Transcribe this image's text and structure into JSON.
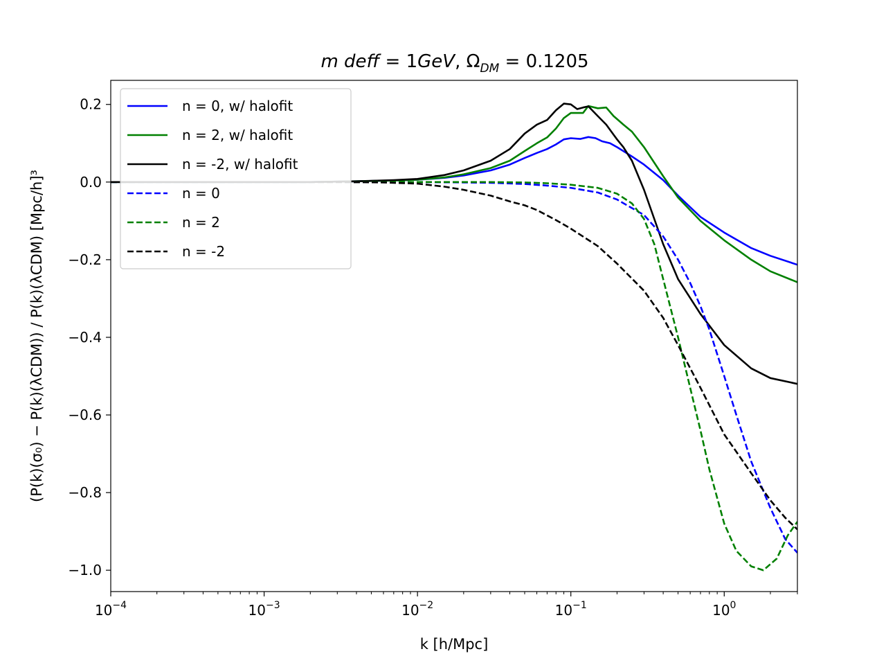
{
  "chart_data": {
    "type": "line",
    "title": "m deff = 1GeV, Ω_DM = 0.1205",
    "title_parts": {
      "m": "m",
      "deff": "deff",
      "eq1": " = 1",
      "gev": "GeV",
      "comma": ", ",
      "omega": "Ω",
      "omega_sub": "DM",
      "eq2": " = 0.1205"
    },
    "xlabel": "k  [h/Mpc]",
    "ylabel": "(P(k)(σ₀) − P(k)(λCDM)) / P(k)(λCDM)  [Mpc/h]³",
    "x_scale": "log",
    "xlim": [
      0.0001,
      3.0
    ],
    "ylim": [
      -1.055,
      0.262
    ],
    "grid": false,
    "legend_position": "top-left",
    "x_ticks": [
      {
        "value": 0.0001,
        "base": "10",
        "exp": "−4"
      },
      {
        "value": 0.001,
        "base": "10",
        "exp": "−3"
      },
      {
        "value": 0.01,
        "base": "10",
        "exp": "−2"
      },
      {
        "value": 0.1,
        "base": "10",
        "exp": "−1"
      },
      {
        "value": 1.0,
        "base": "10",
        "exp": "0"
      }
    ],
    "y_ticks": [
      {
        "value": 0.2,
        "label": "0.2"
      },
      {
        "value": 0.0,
        "label": "0.0"
      },
      {
        "value": -0.2,
        "label": "−0.2"
      },
      {
        "value": -0.4,
        "label": "−0.4"
      },
      {
        "value": -0.6,
        "label": "−0.6"
      },
      {
        "value": -0.8,
        "label": "−0.8"
      },
      {
        "value": -1.0,
        "label": "−1.0"
      }
    ],
    "series": [
      {
        "name": "n = 0, w/ halofit",
        "color": "#0000ff",
        "style": "solid",
        "points": [
          [
            0.0001,
            0
          ],
          [
            0.001,
            0
          ],
          [
            0.002,
            0
          ],
          [
            0.004,
            0.002
          ],
          [
            0.007,
            0.004
          ],
          [
            0.01,
            0.006
          ],
          [
            0.015,
            0.011
          ],
          [
            0.02,
            0.017
          ],
          [
            0.03,
            0.03
          ],
          [
            0.04,
            0.045
          ],
          [
            0.05,
            0.062
          ],
          [
            0.06,
            0.075
          ],
          [
            0.07,
            0.085
          ],
          [
            0.08,
            0.097
          ],
          [
            0.09,
            0.11
          ],
          [
            0.1,
            0.113
          ],
          [
            0.115,
            0.111
          ],
          [
            0.13,
            0.116
          ],
          [
            0.145,
            0.113
          ],
          [
            0.16,
            0.105
          ],
          [
            0.18,
            0.1
          ],
          [
            0.2,
            0.09
          ],
          [
            0.25,
            0.066
          ],
          [
            0.3,
            0.045
          ],
          [
            0.4,
            0.005
          ],
          [
            0.5,
            -0.035
          ],
          [
            0.7,
            -0.09
          ],
          [
            1.0,
            -0.13
          ],
          [
            1.5,
            -0.17
          ],
          [
            2.0,
            -0.19
          ],
          [
            3.0,
            -0.213
          ]
        ]
      },
      {
        "name": "n = 2, w/ halofit",
        "color": "#008000",
        "style": "solid",
        "points": [
          [
            0.0001,
            0
          ],
          [
            0.001,
            0
          ],
          [
            0.002,
            0
          ],
          [
            0.004,
            0.002
          ],
          [
            0.007,
            0.004
          ],
          [
            0.01,
            0.006
          ],
          [
            0.015,
            0.012
          ],
          [
            0.02,
            0.02
          ],
          [
            0.03,
            0.036
          ],
          [
            0.04,
            0.055
          ],
          [
            0.05,
            0.08
          ],
          [
            0.06,
            0.1
          ],
          [
            0.07,
            0.115
          ],
          [
            0.08,
            0.138
          ],
          [
            0.09,
            0.165
          ],
          [
            0.1,
            0.178
          ],
          [
            0.12,
            0.178
          ],
          [
            0.13,
            0.196
          ],
          [
            0.15,
            0.19
          ],
          [
            0.17,
            0.192
          ],
          [
            0.19,
            0.17
          ],
          [
            0.22,
            0.148
          ],
          [
            0.25,
            0.13
          ],
          [
            0.3,
            0.09
          ],
          [
            0.4,
            0.015
          ],
          [
            0.5,
            -0.04
          ],
          [
            0.7,
            -0.1
          ],
          [
            1.0,
            -0.15
          ],
          [
            1.5,
            -0.2
          ],
          [
            2.0,
            -0.23
          ],
          [
            3.0,
            -0.258
          ]
        ]
      },
      {
        "name": "n = -2, w/ halofit",
        "color": "#000000",
        "style": "solid",
        "points": [
          [
            0.0001,
            0
          ],
          [
            0.001,
            0
          ],
          [
            0.002,
            0
          ],
          [
            0.004,
            0.002
          ],
          [
            0.007,
            0.005
          ],
          [
            0.01,
            0.008
          ],
          [
            0.015,
            0.018
          ],
          [
            0.02,
            0.03
          ],
          [
            0.03,
            0.055
          ],
          [
            0.04,
            0.085
          ],
          [
            0.05,
            0.125
          ],
          [
            0.06,
            0.148
          ],
          [
            0.07,
            0.16
          ],
          [
            0.08,
            0.185
          ],
          [
            0.09,
            0.202
          ],
          [
            0.1,
            0.2
          ],
          [
            0.11,
            0.188
          ],
          [
            0.12,
            0.192
          ],
          [
            0.13,
            0.195
          ],
          [
            0.15,
            0.17
          ],
          [
            0.17,
            0.148
          ],
          [
            0.2,
            0.11
          ],
          [
            0.22,
            0.09
          ],
          [
            0.25,
            0.055
          ],
          [
            0.3,
            -0.02
          ],
          [
            0.4,
            -0.16
          ],
          [
            0.5,
            -0.25
          ],
          [
            0.7,
            -0.34
          ],
          [
            1.0,
            -0.42
          ],
          [
            1.5,
            -0.48
          ],
          [
            2.0,
            -0.505
          ],
          [
            3.0,
            -0.52
          ]
        ]
      },
      {
        "name": "n = 0",
        "color": "#0000ff",
        "style": "dashed",
        "points": [
          [
            0.0001,
            0
          ],
          [
            0.001,
            0
          ],
          [
            0.003,
            0
          ],
          [
            0.01,
            0
          ],
          [
            0.02,
            -0.001
          ],
          [
            0.03,
            -0.002
          ],
          [
            0.05,
            -0.005
          ],
          [
            0.07,
            -0.009
          ],
          [
            0.1,
            -0.015
          ],
          [
            0.15,
            -0.027
          ],
          [
            0.2,
            -0.045
          ],
          [
            0.3,
            -0.085
          ],
          [
            0.4,
            -0.14
          ],
          [
            0.5,
            -0.2
          ],
          [
            0.6,
            -0.26
          ],
          [
            0.7,
            -0.32
          ],
          [
            0.8,
            -0.38
          ],
          [
            1.0,
            -0.5
          ],
          [
            1.2,
            -0.6
          ],
          [
            1.5,
            -0.72
          ],
          [
            2.0,
            -0.84
          ],
          [
            2.5,
            -0.92
          ],
          [
            3.0,
            -0.955
          ]
        ]
      },
      {
        "name": "n = 2",
        "color": "#008000",
        "style": "dashed",
        "points": [
          [
            0.0001,
            0
          ],
          [
            0.001,
            0
          ],
          [
            0.003,
            0
          ],
          [
            0.01,
            0
          ],
          [
            0.02,
            0
          ],
          [
            0.03,
            0
          ],
          [
            0.05,
            -0.001
          ],
          [
            0.07,
            -0.003
          ],
          [
            0.1,
            -0.007
          ],
          [
            0.15,
            -0.015
          ],
          [
            0.2,
            -0.03
          ],
          [
            0.25,
            -0.055
          ],
          [
            0.3,
            -0.095
          ],
          [
            0.35,
            -0.16
          ],
          [
            0.4,
            -0.25
          ],
          [
            0.5,
            -0.4
          ],
          [
            0.6,
            -0.53
          ],
          [
            0.7,
            -0.64
          ],
          [
            0.8,
            -0.74
          ],
          [
            1.0,
            -0.88
          ],
          [
            1.2,
            -0.95
          ],
          [
            1.5,
            -0.99
          ],
          [
            1.8,
            -1.0
          ],
          [
            2.2,
            -0.97
          ],
          [
            2.6,
            -0.91
          ],
          [
            3.0,
            -0.875
          ]
        ]
      },
      {
        "name": "n = -2",
        "color": "#000000",
        "style": "dashed",
        "points": [
          [
            0.0001,
            0
          ],
          [
            0.001,
            0
          ],
          [
            0.003,
            0
          ],
          [
            0.006,
            -0.001
          ],
          [
            0.01,
            -0.004
          ],
          [
            0.015,
            -0.012
          ],
          [
            0.02,
            -0.02
          ],
          [
            0.03,
            -0.035
          ],
          [
            0.04,
            -0.05
          ],
          [
            0.05,
            -0.06
          ],
          [
            0.06,
            -0.072
          ],
          [
            0.08,
            -0.098
          ],
          [
            0.1,
            -0.12
          ],
          [
            0.15,
            -0.165
          ],
          [
            0.2,
            -0.21
          ],
          [
            0.3,
            -0.28
          ],
          [
            0.4,
            -0.35
          ],
          [
            0.5,
            -0.42
          ],
          [
            0.7,
            -0.53
          ],
          [
            1.0,
            -0.65
          ],
          [
            1.5,
            -0.75
          ],
          [
            2.0,
            -0.82
          ],
          [
            2.5,
            -0.865
          ],
          [
            3.0,
            -0.895
          ]
        ]
      }
    ]
  }
}
